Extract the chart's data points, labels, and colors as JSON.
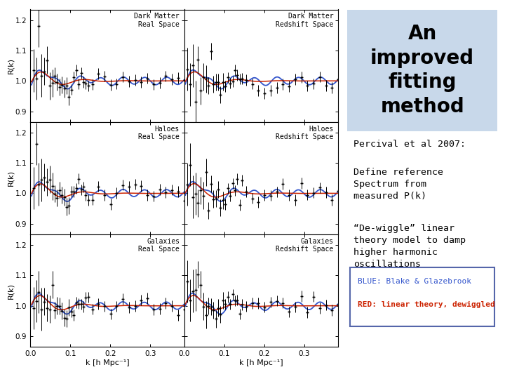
{
  "title_box_text": "An\nimproved\nfitting\nmethod",
  "title_box_color": "#c8d8ea",
  "percival_text": "Percival et al 2007:",
  "define_text": "Define reference\nSpectrum from\nmeasured P(k)",
  "dewiggle_text": "“De-wiggle” linear\ntheory model to damp\nhigher harmonic\noscillations",
  "legend_blue_text": "BLUE: Blake & Glazebrook",
  "legend_red_text": "RED: linear theory, dewiggled",
  "legend_box_edge": "#5566aa",
  "panel_labels_left": [
    "Dark Matter\nReal Space",
    "Haloes\nReal Space",
    "Galaxies\nReal Space"
  ],
  "panel_labels_right": [
    "Dark Matter\nRedshift Space",
    "Haloes\nRedshift Space",
    "Galaxies\nRedshift Space"
  ],
  "ylabel": "R(k)",
  "xlabel": "k [h Mpc⁻¹]",
  "ylim": [
    0.865,
    1.235
  ],
  "xlim": [
    0.0,
    0.385
  ],
  "yticks": [
    0.9,
    1.0,
    1.1,
    1.2
  ],
  "xticks": [
    0.0,
    0.1,
    0.2,
    0.3
  ],
  "data_color": "#000000",
  "blue_color": "#3355cc",
  "red_color": "#cc2200",
  "bg_color": "#ffffff"
}
